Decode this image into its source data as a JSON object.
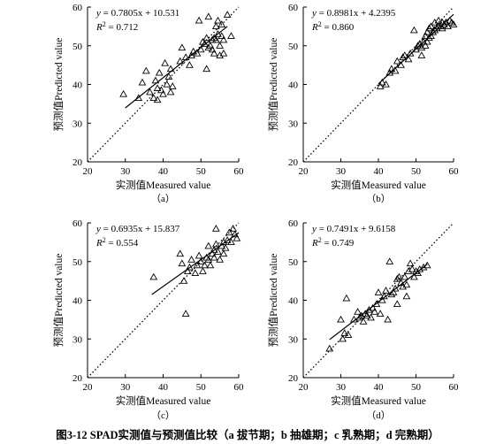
{
  "caption": "图3-12 SPAD实测值与预测值比较（a 拔节期；b 抽雄期；c 乳熟期；d 完熟期）",
  "chart_data": [
    {
      "type": "scatter",
      "panel_label": "（a）",
      "xlabel": "实测值Measured value",
      "ylabel": "预测值Predicted value",
      "xlim": [
        20,
        60
      ],
      "ylim": [
        20,
        60
      ],
      "xticks": [
        "20",
        "30",
        "40",
        "50",
        "60"
      ],
      "yticks": [
        "20",
        "30",
        "40",
        "50",
        "60"
      ],
      "equation_lhs": "y",
      "equation_rhs": " = 0.7805x + 10.531",
      "r2_lhs": "R",
      "r2_sup": "2",
      "r2_rhs": " = 0.712",
      "fit": {
        "slope": 0.7805,
        "intercept": 10.531,
        "x_range": [
          30,
          57
        ]
      },
      "one_to_one_line": true,
      "points": [
        [
          29.5,
          37.5
        ],
        [
          33.5,
          36.5
        ],
        [
          34.5,
          40.5
        ],
        [
          35.5,
          43.5
        ],
        [
          36.5,
          38
        ],
        [
          37.5,
          36.5
        ],
        [
          38.5,
          39
        ],
        [
          38,
          41
        ],
        [
          39,
          43
        ],
        [
          38.5,
          36
        ],
        [
          39.5,
          38.5
        ],
        [
          40,
          37.5
        ],
        [
          40.5,
          45.5
        ],
        [
          41,
          40
        ],
        [
          41.5,
          42
        ],
        [
          42,
          38
        ],
        [
          42.5,
          39.5
        ],
        [
          42,
          44
        ],
        [
          44.5,
          46
        ],
        [
          45,
          49.5
        ],
        [
          46,
          47
        ],
        [
          47,
          45
        ],
        [
          47.5,
          47.5
        ],
        [
          48,
          48.5
        ],
        [
          49,
          48
        ],
        [
          49.5,
          56.5
        ],
        [
          50,
          49
        ],
        [
          50.5,
          51
        ],
        [
          51,
          50.5
        ],
        [
          51.5,
          52
        ],
        [
          51.5,
          44
        ],
        [
          52,
          49.5
        ],
        [
          52,
          57.5
        ],
        [
          52.5,
          50
        ],
        [
          53,
          49
        ],
        [
          53,
          51.5
        ],
        [
          53.5,
          48
        ],
        [
          53.5,
          52
        ],
        [
          54,
          55
        ],
        [
          54,
          51.5
        ],
        [
          54.5,
          53
        ],
        [
          54.5,
          56.5
        ],
        [
          55,
          50
        ],
        [
          55,
          47.5
        ],
        [
          55.5,
          52.5
        ],
        [
          55.5,
          55.5
        ],
        [
          56,
          48
        ],
        [
          56,
          51.5
        ],
        [
          57,
          58
        ],
        [
          58,
          52.5
        ]
      ]
    },
    {
      "type": "scatter",
      "panel_label": "（b）",
      "xlabel": "实测值Measured value",
      "ylabel": "预测值Predicted value",
      "xlim": [
        20,
        60
      ],
      "ylim": [
        20,
        60
      ],
      "xticks": [
        "20",
        "30",
        "40",
        "50",
        "60"
      ],
      "yticks": [
        "20",
        "30",
        "40",
        "50",
        "60"
      ],
      "equation_lhs": "y",
      "equation_rhs": " = 0.8981x + 4.2395",
      "r2_lhs": "R",
      "r2_sup": "2",
      "r2_rhs": " = 0.860",
      "fit": {
        "slope": 0.8981,
        "intercept": 4.2395,
        "x_range": [
          40,
          60
        ]
      },
      "one_to_one_line": true,
      "points": [
        [
          40.5,
          39.5
        ],
        [
          41,
          40.5
        ],
        [
          42,
          40
        ],
        [
          43,
          43
        ],
        [
          43.5,
          44
        ],
        [
          44.5,
          43.5
        ],
        [
          45,
          46
        ],
        [
          46,
          45
        ],
        [
          46.5,
          47
        ],
        [
          47,
          47.5
        ],
        [
          48,
          46.5
        ],
        [
          48.5,
          48
        ],
        [
          49.5,
          54
        ],
        [
          50,
          49
        ],
        [
          50.5,
          50
        ],
        [
          51,
          50.5
        ],
        [
          51.5,
          49.5
        ],
        [
          51.5,
          47.5
        ],
        [
          52,
          51
        ],
        [
          52.5,
          50
        ],
        [
          52.5,
          52.5
        ],
        [
          53,
          51
        ],
        [
          53,
          53.5
        ],
        [
          53.5,
          52
        ],
        [
          53.5,
          54.5
        ],
        [
          54,
          52.5
        ],
        [
          54,
          55
        ],
        [
          54.5,
          53.5
        ],
        [
          55,
          54
        ],
        [
          55,
          56
        ],
        [
          55.5,
          54.5
        ],
        [
          56,
          55
        ],
        [
          56,
          56.5
        ],
        [
          56.5,
          55
        ],
        [
          57,
          56
        ],
        [
          57,
          54.5
        ],
        [
          57.5,
          55.5
        ],
        [
          58,
          56
        ],
        [
          58.5,
          55
        ],
        [
          59,
          56.5
        ],
        [
          59.5,
          56
        ],
        [
          60,
          55.5
        ]
      ]
    },
    {
      "type": "scatter",
      "panel_label": "（c）",
      "xlabel": "实测值Measured value",
      "ylabel": "预测值Predicted value",
      "xlim": [
        20,
        60
      ],
      "ylim": [
        20,
        60
      ],
      "xticks": [
        "20",
        "30",
        "40",
        "50",
        "60"
      ],
      "yticks": [
        "20",
        "30",
        "40",
        "50",
        "60"
      ],
      "equation_lhs": "y",
      "equation_rhs": " = 0.6935x + 15.837",
      "r2_lhs": "R",
      "r2_sup": "2",
      "r2_rhs": " = 0.554",
      "fit": {
        "slope": 0.6935,
        "intercept": 15.837,
        "x_range": [
          37,
          60
        ]
      },
      "one_to_one_line": true,
      "points": [
        [
          37.5,
          46
        ],
        [
          44.5,
          52
        ],
        [
          45,
          49.5
        ],
        [
          45.5,
          45
        ],
        [
          46,
          36.5
        ],
        [
          46.5,
          47.5
        ],
        [
          47,
          48.5
        ],
        [
          47.5,
          50.5
        ],
        [
          48.5,
          47
        ],
        [
          49,
          49
        ],
        [
          49.5,
          51.5
        ],
        [
          50,
          50
        ],
        [
          50.5,
          47.5
        ],
        [
          51,
          49
        ],
        [
          51.5,
          51
        ],
        [
          52,
          50.5
        ],
        [
          52,
          54
        ],
        [
          52.5,
          49
        ],
        [
          53,
          52
        ],
        [
          53.5,
          53
        ],
        [
          53.5,
          51
        ],
        [
          54,
          54.5
        ],
        [
          54,
          58.5
        ],
        [
          54.5,
          52.5
        ],
        [
          55,
          50.5
        ],
        [
          55.5,
          54
        ],
        [
          56,
          55
        ],
        [
          56,
          52
        ],
        [
          56.5,
          53.5
        ],
        [
          57,
          55.5
        ],
        [
          57.5,
          57.5
        ],
        [
          58,
          55
        ],
        [
          58.5,
          58.5
        ],
        [
          59,
          57
        ],
        [
          59.5,
          56
        ]
      ]
    },
    {
      "type": "scatter",
      "panel_label": "（d）",
      "xlabel": "实测值Measured value",
      "ylabel": "预测值Predicted value",
      "xlim": [
        20,
        60
      ],
      "ylim": [
        20,
        60
      ],
      "xticks": [
        "20",
        "30",
        "40",
        "50",
        "60"
      ],
      "yticks": [
        "20",
        "30",
        "40",
        "50",
        "60"
      ],
      "equation_lhs": "y",
      "equation_rhs": " = 0.7491x + 9.6158",
      "r2_lhs": "R",
      "r2_sup": "2",
      "r2_rhs": " = 0.749",
      "fit": {
        "slope": 0.7491,
        "intercept": 9.6158,
        "x_range": [
          27,
          53
        ]
      },
      "one_to_one_line": true,
      "points": [
        [
          27,
          27.5
        ],
        [
          30,
          35
        ],
        [
          30.5,
          30
        ],
        [
          31,
          31.5
        ],
        [
          31.5,
          40.5
        ],
        [
          32,
          31
        ],
        [
          33.5,
          35
        ],
        [
          34.5,
          37
        ],
        [
          35,
          35.5
        ],
        [
          35.5,
          36
        ],
        [
          36,
          34.5
        ],
        [
          36.5,
          36.5
        ],
        [
          37,
          36
        ],
        [
          37.5,
          37.5
        ],
        [
          38,
          35.5
        ],
        [
          38.5,
          38
        ],
        [
          39,
          37
        ],
        [
          39.5,
          39
        ],
        [
          40,
          42
        ],
        [
          40.5,
          36.5
        ],
        [
          41,
          40
        ],
        [
          41.5,
          41
        ],
        [
          42,
          42.5
        ],
        [
          42.5,
          35
        ],
        [
          43,
          50
        ],
        [
          43.5,
          41.5
        ],
        [
          44,
          42
        ],
        [
          44.5,
          43
        ],
        [
          45,
          39
        ],
        [
          45,
          45.5
        ],
        [
          45.5,
          46
        ],
        [
          46,
          44.5
        ],
        [
          46.5,
          43.5
        ],
        [
          47,
          46
        ],
        [
          47.5,
          44
        ],
        [
          47.5,
          41
        ],
        [
          48,
          47.5
        ],
        [
          48.5,
          49.5
        ],
        [
          49,
          48
        ],
        [
          49.5,
          46
        ],
        [
          50,
          47.5
        ],
        [
          50.5,
          47
        ],
        [
          51,
          48
        ],
        [
          52,
          48.5
        ],
        [
          53,
          49
        ]
      ]
    }
  ]
}
